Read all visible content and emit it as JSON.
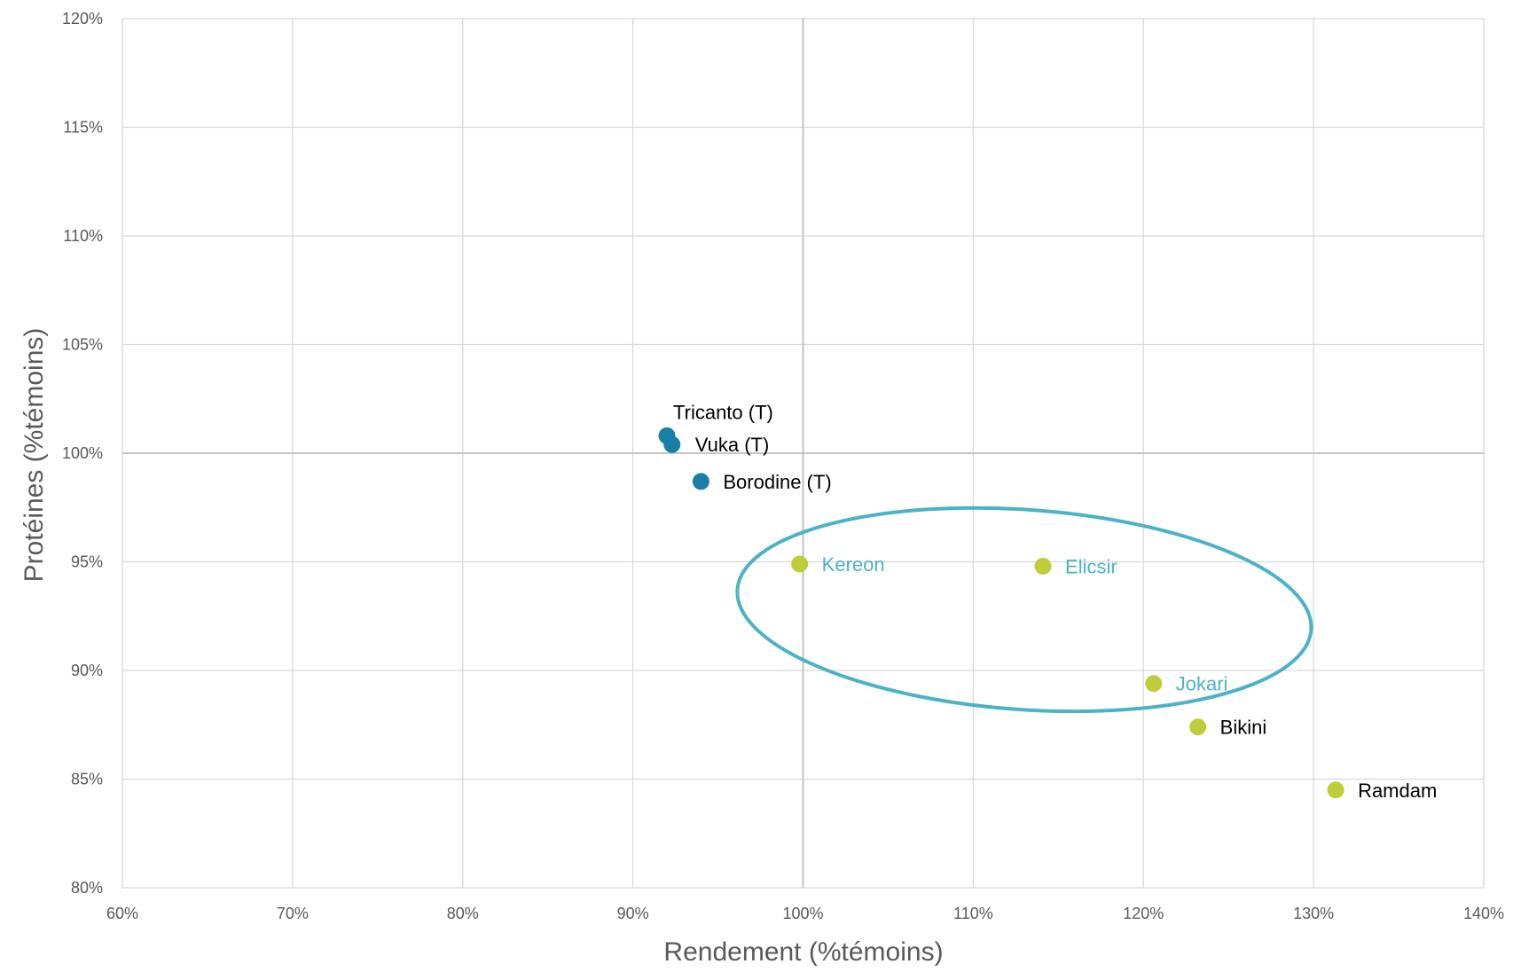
{
  "chart_data": {
    "type": "scatter",
    "title": "",
    "xlabel": "Rendement (%témoins)",
    "ylabel": "Protéines (%témoins)",
    "xlim": [
      60,
      140
    ],
    "ylim": [
      80,
      120
    ],
    "x_ticks": [
      60,
      70,
      80,
      90,
      100,
      110,
      120,
      130,
      140
    ],
    "y_ticks": [
      80,
      85,
      90,
      95,
      100,
      105,
      110,
      115,
      120
    ],
    "x_tick_labels": [
      "60%",
      "70%",
      "80%",
      "90%",
      "100%",
      "110%",
      "120%",
      "130%",
      "140%"
    ],
    "y_tick_labels": [
      "80%",
      "85%",
      "90%",
      "95%",
      "100%",
      "105%",
      "110%",
      "115%",
      "120%"
    ],
    "grid": true,
    "reference_lines": {
      "x": 100,
      "y": 100
    },
    "points": [
      {
        "label": "Tricanto (T)",
        "x": 92.0,
        "y": 100.8,
        "group": "temoin",
        "label_color": "#000000"
      },
      {
        "label": "Vuka (T)",
        "x": 92.3,
        "y": 100.4,
        "group": "temoin",
        "label_color": "#000000"
      },
      {
        "label": "Borodine (T)",
        "x": 94.0,
        "y": 98.7,
        "group": "temoin",
        "label_color": "#000000"
      },
      {
        "label": "Kereon",
        "x": 99.8,
        "y": 94.9,
        "group": "variete",
        "label_color": "#4bb3c5"
      },
      {
        "label": "Elicsir",
        "x": 114.1,
        "y": 94.8,
        "group": "variete",
        "label_color": "#4bb3c5"
      },
      {
        "label": "Jokari",
        "x": 120.6,
        "y": 89.4,
        "group": "variete",
        "label_color": "#4bb3c5"
      },
      {
        "label": "Bikini",
        "x": 123.2,
        "y": 87.4,
        "group": "variete",
        "label_color": "#000000"
      },
      {
        "label": "Ramdam",
        "x": 131.3,
        "y": 84.5,
        "group": "variete",
        "label_color": "#000000"
      }
    ],
    "colors": {
      "temoin": "#1a7fa6",
      "variete": "#bfcd3a",
      "highlight_ellipse": "#4bb3c5",
      "grid": "#d9d9d9",
      "reference": "#bfbfbf"
    },
    "highlight_ellipse": {
      "cx": 113.0,
      "cy": 92.8,
      "rx": 16.9,
      "ry": 4.6,
      "rotation_deg": 4
    }
  }
}
